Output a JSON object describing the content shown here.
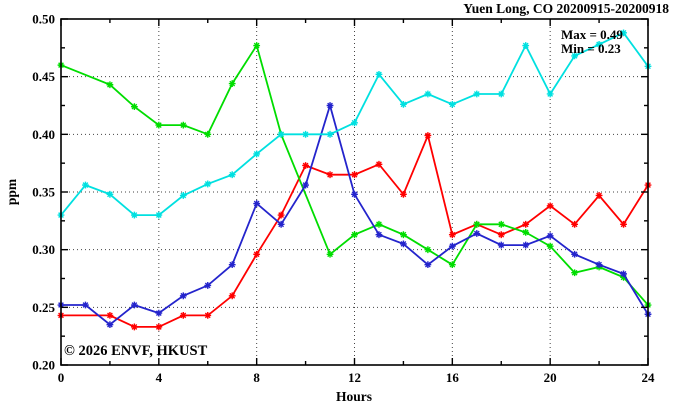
{
  "title": "Yuen Long, CO 20200915-20200918",
  "annotations": {
    "max_label": "Max = 0.49",
    "min_label": "Min = 0.23"
  },
  "watermark": "© 2026 ENVF, HKUST",
  "colors": {
    "red": "#ff0000",
    "green": "#00dd00",
    "blue": "#2424cc",
    "cyan": "#00e0e0",
    "grid": "#444444",
    "axis": "#000000",
    "watermark": "#d6d6d6"
  },
  "chart_data": {
    "type": "line",
    "title": "Yuen Long, CO 20200915-20200918",
    "xlabel": "Hours",
    "ylabel": "ppm",
    "xlim": [
      0,
      24
    ],
    "ylim": [
      0.2,
      0.5
    ],
    "grid": "dotted, at major ticks",
    "legend_position": "none",
    "x_major_ticks": [
      0,
      4,
      8,
      12,
      16,
      20,
      24
    ],
    "x_tick_labels": [
      "0",
      "4",
      "8",
      "12",
      "16",
      "20",
      "24"
    ],
    "x_minor_ticks": [
      2,
      6,
      10,
      14,
      18,
      22
    ],
    "y_major_ticks": [
      0.2,
      0.25,
      0.3,
      0.35,
      0.4,
      0.45,
      0.5
    ],
    "y_tick_labels": [
      "0.20",
      "0.25",
      "0.30",
      "0.35",
      "0.40",
      "0.45",
      "0.50"
    ],
    "y_minor_ticks": [
      0.225,
      0.275,
      0.325,
      0.375,
      0.425,
      0.475
    ],
    "x": [
      0,
      1,
      2,
      3,
      4,
      5,
      6,
      7,
      8,
      9,
      10,
      11,
      12,
      13,
      14,
      15,
      16,
      17,
      18,
      19,
      20,
      21,
      22,
      23,
      24
    ],
    "series": [
      {
        "name": "red-series",
        "color_key": "red",
        "values": [
          0.243,
          null,
          0.243,
          0.233,
          0.233,
          0.243,
          0.243,
          0.26,
          0.296,
          0.33,
          0.373,
          0.365,
          0.365,
          0.374,
          0.348,
          0.399,
          0.313,
          0.322,
          0.313,
          0.322,
          0.338,
          0.322,
          0.347,
          0.322,
          0.356
        ]
      },
      {
        "name": "green-series",
        "color_key": "green",
        "values": [
          0.46,
          null,
          0.443,
          0.424,
          0.408,
          0.408,
          0.4,
          0.444,
          0.477,
          0.4,
          null,
          0.296,
          0.313,
          0.322,
          0.313,
          0.3,
          0.287,
          0.322,
          0.322,
          0.315,
          0.303,
          0.28,
          0.285,
          0.276,
          0.252
        ]
      },
      {
        "name": "blue-series",
        "color_key": "blue",
        "values": [
          0.252,
          0.252,
          0.235,
          0.252,
          0.245,
          0.26,
          0.269,
          0.287,
          0.34,
          0.322,
          0.356,
          0.425,
          0.348,
          0.313,
          0.305,
          0.287,
          0.303,
          0.314,
          0.304,
          0.304,
          0.312,
          0.296,
          0.287,
          0.279,
          0.244
        ]
      },
      {
        "name": "cyan-series",
        "color_key": "cyan",
        "values": [
          0.33,
          0.356,
          0.348,
          0.33,
          0.33,
          0.347,
          0.357,
          0.365,
          0.383,
          0.4,
          0.4,
          0.4,
          0.41,
          0.452,
          0.426,
          0.435,
          0.426,
          0.435,
          0.435,
          0.477,
          0.435,
          0.468,
          0.478,
          0.488,
          0.459
        ]
      }
    ],
    "annotations": [
      "Max = 0.49",
      "Min = 0.23"
    ]
  }
}
